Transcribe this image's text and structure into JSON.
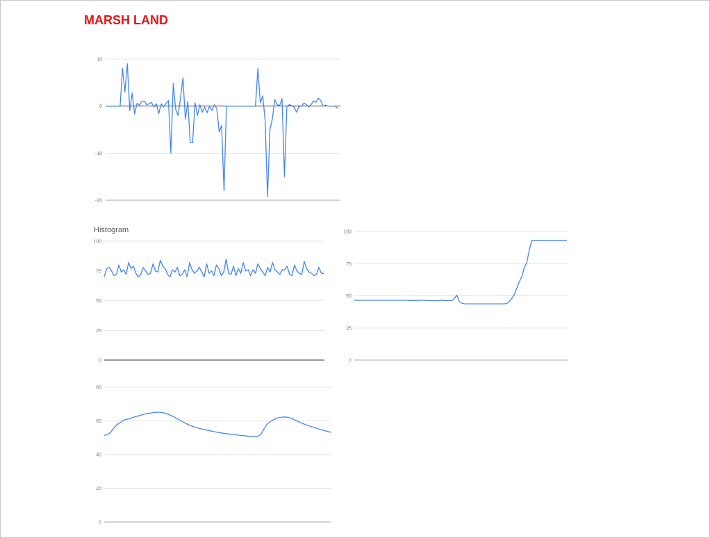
{
  "page": {
    "title": "MARSH LAND"
  },
  "colors": {
    "series": "#4285f4",
    "grid": "#e6e6e6",
    "zero_line": "#333333",
    "axis_text": "#777777",
    "title": "#ee1111"
  },
  "chart_data": [
    {
      "id": "chart-1",
      "type": "line",
      "title": "",
      "ylim": [
        -20,
        10
      ],
      "yticks": [
        10,
        0,
        -10,
        -20
      ],
      "grid": true,
      "series": [
        {
          "values": [
            0,
            0,
            0,
            0,
            0,
            0,
            0,
            8,
            3,
            9,
            -1,
            2.8,
            -1.7,
            0.6,
            0.2,
            1,
            1.1,
            0.3,
            0.5,
            0.8,
            -0.2,
            0.5,
            -1.6,
            0.5,
            -0.2,
            0.6,
            1.2,
            -10,
            4.8,
            -0.7,
            -2,
            1.8,
            6,
            -2.8,
            1,
            -7.7,
            -7.8,
            0.7,
            -2,
            0.3,
            -1.3,
            -0.2,
            -1.4,
            0,
            -0.9,
            0.3,
            -0.5,
            -5.5,
            -4.1,
            -18,
            0,
            0,
            0,
            0,
            0,
            0,
            0,
            0,
            0,
            0,
            0,
            0,
            0,
            8,
            0.7,
            2.2,
            -3,
            -19.2,
            -5,
            -2.7,
            1.4,
            0.3,
            0.1,
            1.6,
            -15,
            0,
            0.3,
            0.1,
            -0.2,
            -1.3,
            -0.1,
            0,
            0.6,
            0.4,
            -0.2,
            0.3,
            1.1,
            0.8,
            1.7,
            1.2,
            0,
            0.2,
            0,
            0,
            0,
            0,
            -0.5
          ]
        }
      ]
    },
    {
      "id": "chart-2",
      "type": "line",
      "title": "Histogram",
      "ylim": [
        0,
        100
      ],
      "yticks": [
        100,
        75,
        50,
        25,
        0
      ],
      "grid": true,
      "series": [
        {
          "values": [
            70,
            77,
            78,
            75,
            71,
            72,
            80,
            74,
            76,
            72,
            82,
            77,
            79,
            73,
            70,
            72,
            78,
            75,
            72,
            73,
            81,
            75,
            74,
            84,
            79,
            77,
            72,
            70,
            76,
            74,
            78,
            71,
            72,
            76,
            70,
            82,
            76,
            73,
            75,
            78,
            74,
            70,
            81,
            73,
            75,
            71,
            80,
            77,
            71,
            74,
            85,
            73,
            72,
            79,
            71,
            77,
            73,
            82,
            75,
            76,
            71,
            76,
            73,
            81,
            77,
            74,
            71,
            78,
            74,
            82,
            76,
            74,
            72,
            76,
            76,
            79,
            72,
            71,
            80,
            75,
            73,
            72,
            83,
            77,
            74,
            73,
            71,
            72,
            78,
            73,
            73
          ]
        }
      ]
    },
    {
      "id": "chart-3",
      "type": "line",
      "title": "",
      "ylim": [
        0,
        100
      ],
      "yticks": [
        100,
        75,
        50,
        25,
        0
      ],
      "grid": true,
      "series": [
        {
          "values": [
            46.5,
            46.5,
            46.5,
            46.5,
            46.5,
            46.5,
            46.5,
            46.5,
            46.5,
            46.5,
            46.5,
            46.5,
            46.5,
            46.5,
            46.5,
            46.5,
            46.5,
            46.5,
            46.5,
            46.5,
            46.5,
            46.5,
            46.3,
            46.3,
            46.2,
            46.3,
            46.5,
            46.5,
            46.5,
            46.3,
            46.2,
            46.2,
            46.2,
            46.2,
            46.3,
            46.5,
            46.3,
            46.3,
            46.2,
            46.2,
            48,
            50.5,
            45.5,
            44.2,
            43.8,
            43.7,
            43.7,
            43.7,
            43.7,
            43.7,
            43.7,
            43.7,
            43.7,
            43.7,
            43.7,
            43.7,
            43.7,
            43.7,
            43.7,
            43.7,
            43.7,
            44,
            45.5,
            48,
            51,
            56,
            61,
            65,
            72,
            76,
            86,
            93,
            93,
            93,
            93,
            93,
            93,
            93,
            93,
            93,
            93,
            93,
            93,
            93,
            93,
            93
          ]
        }
      ]
    },
    {
      "id": "chart-4",
      "type": "line",
      "title": "",
      "ylim": [
        0,
        80
      ],
      "yticks": [
        80,
        60,
        40,
        20,
        0
      ],
      "grid": true,
      "series": [
        {
          "values": [
            51.5,
            51.8,
            53,
            55.5,
            57.5,
            58.8,
            60,
            60.8,
            61.2,
            61.8,
            62.4,
            62.9,
            63.4,
            63.9,
            64.3,
            64.6,
            64.9,
            65.1,
            65.1,
            64.9,
            64.5,
            63.8,
            63,
            62.1,
            61.1,
            60.1,
            59.1,
            58.1,
            57.3,
            56.6,
            56,
            55.5,
            55.1,
            54.7,
            54.3,
            53.9,
            53.5,
            53.2,
            52.9,
            52.6,
            52.4,
            52.1,
            51.9,
            51.7,
            51.5,
            51.3,
            51.1,
            50.9,
            50.7,
            50.6,
            50.6,
            52,
            55,
            58,
            59.5,
            60.5,
            61.5,
            62,
            62.2,
            62.3,
            62.1,
            61.5,
            60.6,
            59.8,
            59,
            58.2,
            57.5,
            56.9,
            56.3,
            55.7,
            55.1,
            54.6,
            54.1,
            53.6,
            53.2
          ]
        }
      ]
    }
  ]
}
